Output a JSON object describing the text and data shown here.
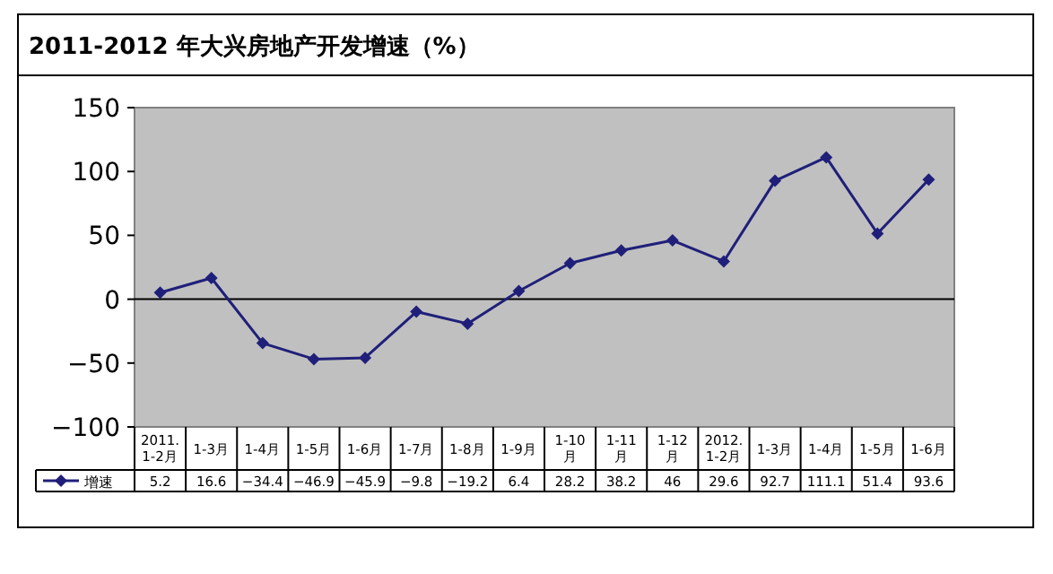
{
  "chart_data": {
    "type": "line",
    "title": "2011-2012 年大兴房地产开发增速（%）",
    "categories": [
      "2011.\n1-2月",
      "1-3月",
      "1-4月",
      "1-5月",
      "1-6月",
      "1-7月",
      "1-8月",
      "1-9月",
      "1-10\n月",
      "1-11\n月",
      "1-12\n月",
      "2012.\n1-2月",
      "1-3月",
      "1-4月",
      "1-5月",
      "1-6月"
    ],
    "series": [
      {
        "name": "增速",
        "color": "#1f1f7a",
        "values": [
          5.2,
          16.6,
          -34.4,
          -46.9,
          -45.9,
          -9.8,
          -19.2,
          6.4,
          28.2,
          38.2,
          46,
          29.6,
          92.7,
          111.1,
          51.4,
          93.6
        ]
      }
    ],
    "ylim": [
      -100,
      150
    ],
    "yticks": [
      -100,
      -50,
      0,
      50,
      100,
      150
    ],
    "data_labels": true,
    "marker": "diamond",
    "legend": "bottom",
    "ref_lines": [
      {
        "axis": "y",
        "value": 0,
        "color": "#000000"
      }
    ]
  }
}
